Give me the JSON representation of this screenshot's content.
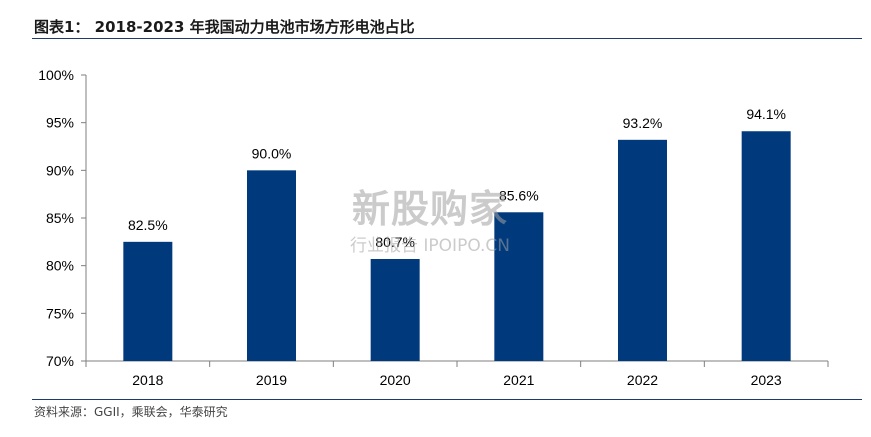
{
  "header": {
    "title": "图表1： 2018-2023 年我国动力电池市场方形电池占比"
  },
  "source": "资料来源：GGII，乘联会，华泰研究",
  "watermark": {
    "main": "新股购家",
    "sub": "行业报告 IPOIPO.CN"
  },
  "colors": {
    "bar": "#003a7d",
    "axis": "#7f7f7f",
    "rule": "#1f3a6e"
  },
  "chart_data": {
    "type": "bar",
    "categories": [
      "2018",
      "2019",
      "2020",
      "2021",
      "2022",
      "2023"
    ],
    "values": [
      82.5,
      90.0,
      80.7,
      85.6,
      93.2,
      94.1
    ],
    "value_labels": [
      "82.5%",
      "90.0%",
      "80.7%",
      "85.6%",
      "93.2%",
      "94.1%"
    ],
    "ylim": [
      70,
      100
    ],
    "yticks": [
      70,
      75,
      80,
      85,
      90,
      95,
      100
    ],
    "ytick_labels": [
      "70%",
      "75%",
      "80%",
      "85%",
      "90%",
      "95%",
      "100%"
    ],
    "grid": false,
    "legend": "none"
  }
}
